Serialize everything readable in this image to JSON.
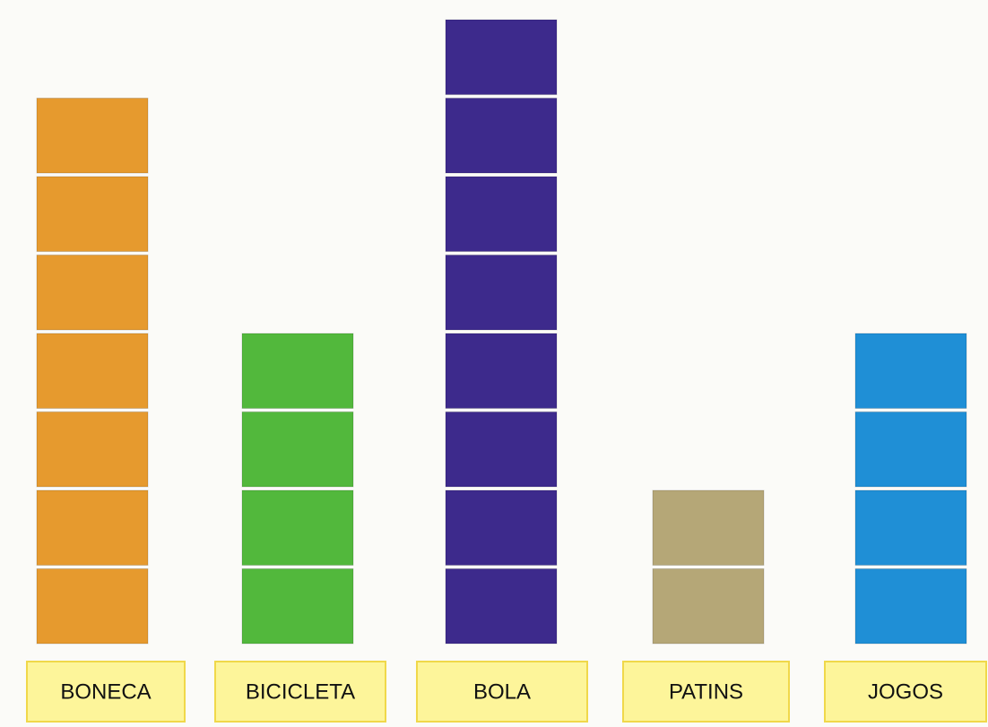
{
  "chart_data": {
    "type": "bar",
    "categories": [
      "BONECA",
      "BICICLETA",
      "BOLA",
      "PATINS",
      "JOGOS"
    ],
    "values": [
      7,
      4,
      8,
      2,
      4
    ],
    "colors": [
      "#e69a2e",
      "#52b83c",
      "#3d2a8c",
      "#b5a777",
      "#1f8fd6"
    ]
  }
}
